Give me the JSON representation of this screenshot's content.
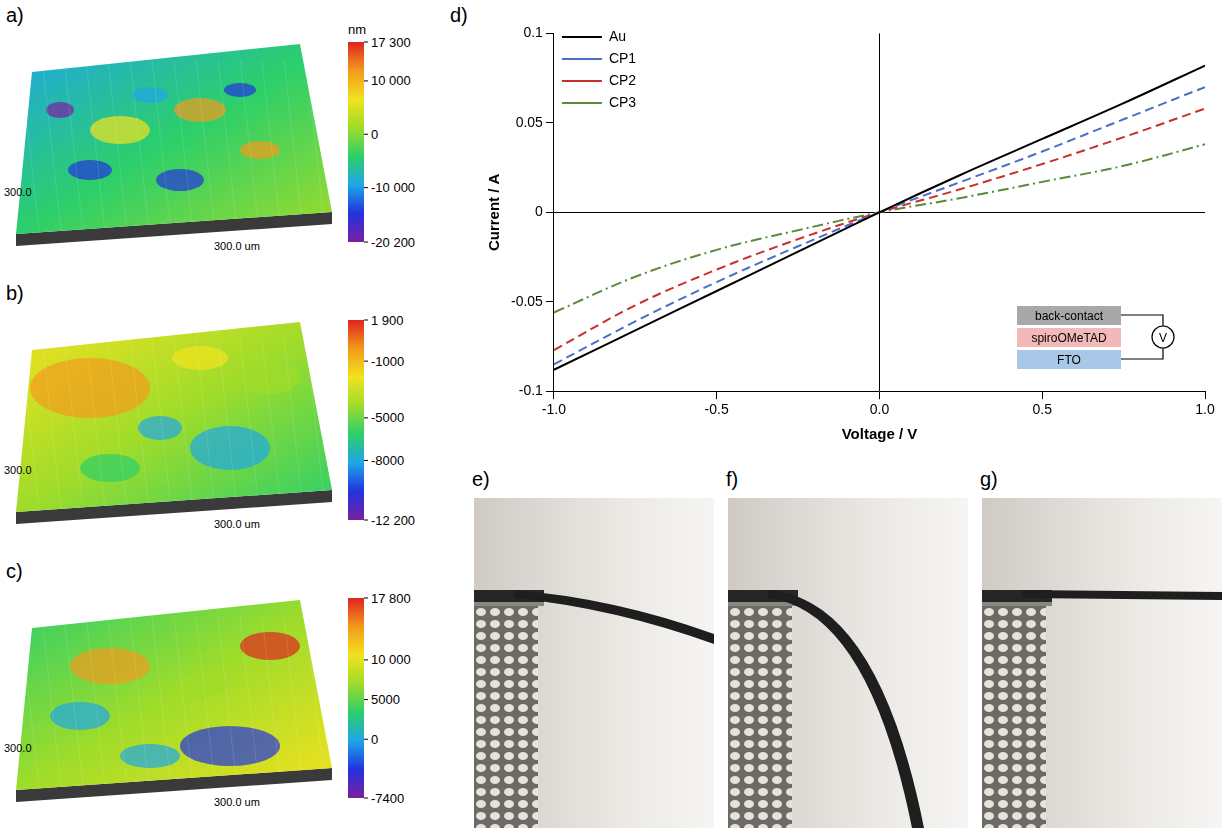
{
  "panels": [
    {
      "label": "a)",
      "type": "surface",
      "axis_labels": [
        "300.0",
        "300.0 um"
      ],
      "colorbar": {
        "unit": "nm",
        "range": [
          -20200,
          17300
        ],
        "ticks": [
          {
            "value": 17300,
            "label": "17 300"
          },
          {
            "value": 10000,
            "label": "10 000"
          },
          0,
          {
            "value": -10000,
            "label": "-10 000"
          },
          {
            "value": -20200,
            "label": "-20 200"
          }
        ]
      }
    },
    {
      "label": "b)",
      "type": "surface",
      "axis_labels": [
        "300.0",
        "300.0 um"
      ],
      "colorbar": {
        "range": [
          -12200,
          1900
        ],
        "ticks": [
          {
            "value": 1900,
            "label": "1 900"
          },
          -1000,
          -5000,
          -8000,
          {
            "value": -12200,
            "label": "-12 200"
          }
        ]
      }
    },
    {
      "label": "c)",
      "type": "surface",
      "axis_labels": [
        "300.0",
        "300.0 um"
      ],
      "colorbar": {
        "range": [
          -7400,
          17800
        ],
        "ticks": [
          {
            "value": 17800,
            "label": "17 800"
          },
          {
            "value": 10000,
            "label": "10 000"
          },
          5000,
          0,
          -7400
        ]
      }
    }
  ],
  "chart_data": {
    "label": "d)",
    "type": "line",
    "xlabel": "Voltage / V",
    "ylabel": "Current / A",
    "x": [
      -1.0,
      -0.75,
      -0.5,
      -0.25,
      0.0,
      0.25,
      0.5,
      0.75,
      1.0
    ],
    "series": [
      {
        "name": "Au",
        "color": "#000000",
        "line_style": "solid",
        "values": [
          -0.088,
          -0.066,
          -0.044,
          -0.022,
          0,
          0.021,
          0.041,
          0.061,
          0.082
        ]
      },
      {
        "name": "CP1",
        "color": "#4a6fc4",
        "line_style": "dashed",
        "values": [
          -0.085,
          -0.061,
          -0.039,
          -0.019,
          0,
          0.017,
          0.034,
          0.052,
          0.07
        ]
      },
      {
        "name": "CP2",
        "color": "#c8302a",
        "line_style": "dashed",
        "values": [
          -0.077,
          -0.052,
          -0.032,
          -0.015,
          0,
          0.013,
          0.027,
          0.042,
          0.058
        ]
      },
      {
        "name": "CP3",
        "color": "#5c8a3c",
        "line_style": "dashdot",
        "values": [
          -0.056,
          -0.036,
          -0.021,
          -0.01,
          0,
          0.008,
          0.017,
          0.026,
          0.038
        ]
      }
    ],
    "xlim": [
      -1.0,
      1.0
    ],
    "xticks": [
      {
        "value": -1.0,
        "label": "-1.0"
      },
      {
        "value": -0.5,
        "label": "-0.5"
      },
      {
        "value": 0,
        "label": "0.0"
      },
      {
        "value": 0.5,
        "label": "0.5"
      },
      {
        "value": 1.0,
        "label": "1.0"
      }
    ],
    "ylim": [
      -0.1,
      0.1
    ],
    "yticks": [
      -0.1,
      -0.05,
      0,
      0.05,
      0.1
    ],
    "legend": "upper left",
    "inset": {
      "layers": [
        "back-contact",
        "spiroOMeTAD",
        "FTO"
      ],
      "meter": "V"
    }
  },
  "photos": [
    {
      "label": "e)"
    },
    {
      "label": "f)"
    },
    {
      "label": "g)"
    }
  ]
}
